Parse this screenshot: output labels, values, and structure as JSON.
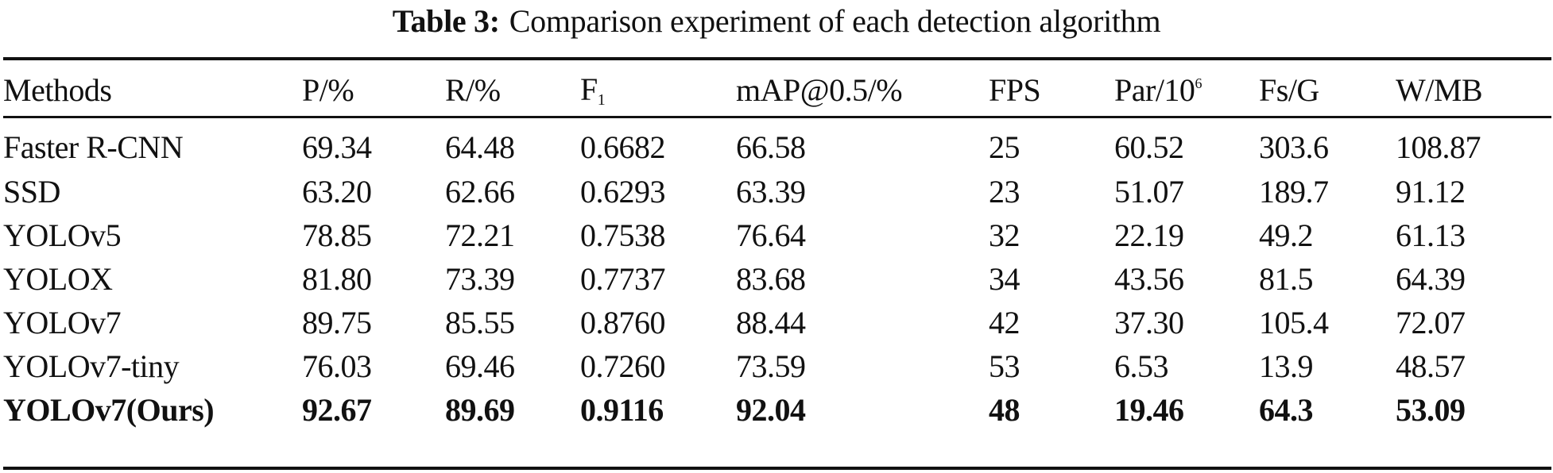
{
  "caption": {
    "label": "Table 3:",
    "text": "Comparison experiment of each detection algorithm"
  },
  "table": {
    "headers": [
      {
        "main": "Methods",
        "sub": null,
        "sup": null
      },
      {
        "main": "P/%",
        "sub": null,
        "sup": null
      },
      {
        "main": "R/%",
        "sub": null,
        "sup": null
      },
      {
        "main": "F",
        "sub": "1",
        "sup": null
      },
      {
        "main": "mAP@0.5/%",
        "sub": null,
        "sup": null
      },
      {
        "main": "FPS",
        "sub": null,
        "sup": null
      },
      {
        "main": "Par/10",
        "sub": null,
        "sup": "6"
      },
      {
        "main": "Fs/G",
        "sub": null,
        "sup": null
      },
      {
        "main": "W/MB",
        "sub": null,
        "sup": null
      }
    ],
    "rows": [
      {
        "cells": [
          "Faster R-CNN",
          "69.34",
          "64.48",
          "0.6682",
          "66.58",
          "25",
          "60.52",
          "303.6",
          "108.87"
        ],
        "bold": false
      },
      {
        "cells": [
          "SSD",
          "63.20",
          "62.66",
          "0.6293",
          "63.39",
          "23",
          "51.07",
          "189.7",
          "91.12"
        ],
        "bold": false
      },
      {
        "cells": [
          "YOLOv5",
          "78.85",
          "72.21",
          "0.7538",
          "76.64",
          "32",
          "22.19",
          "49.2",
          "61.13"
        ],
        "bold": false
      },
      {
        "cells": [
          "YOLOX",
          "81.80",
          "73.39",
          "0.7737",
          "83.68",
          "34",
          "43.56",
          "81.5",
          "64.39"
        ],
        "bold": false
      },
      {
        "cells": [
          "YOLOv7",
          "89.75",
          "85.55",
          "0.8760",
          "88.44",
          "42",
          "37.30",
          "105.4",
          "72.07"
        ],
        "bold": false
      },
      {
        "cells": [
          "YOLOv7-tiny",
          "76.03",
          "69.46",
          "0.7260",
          "73.59",
          "53",
          "6.53",
          "13.9",
          "48.57"
        ],
        "bold": false
      },
      {
        "cells": [
          "YOLOv7(Ours)",
          "92.67",
          "89.69",
          "0.9116",
          "92.04",
          "48",
          "19.46",
          "64.3",
          "53.09"
        ],
        "bold": true
      }
    ]
  }
}
